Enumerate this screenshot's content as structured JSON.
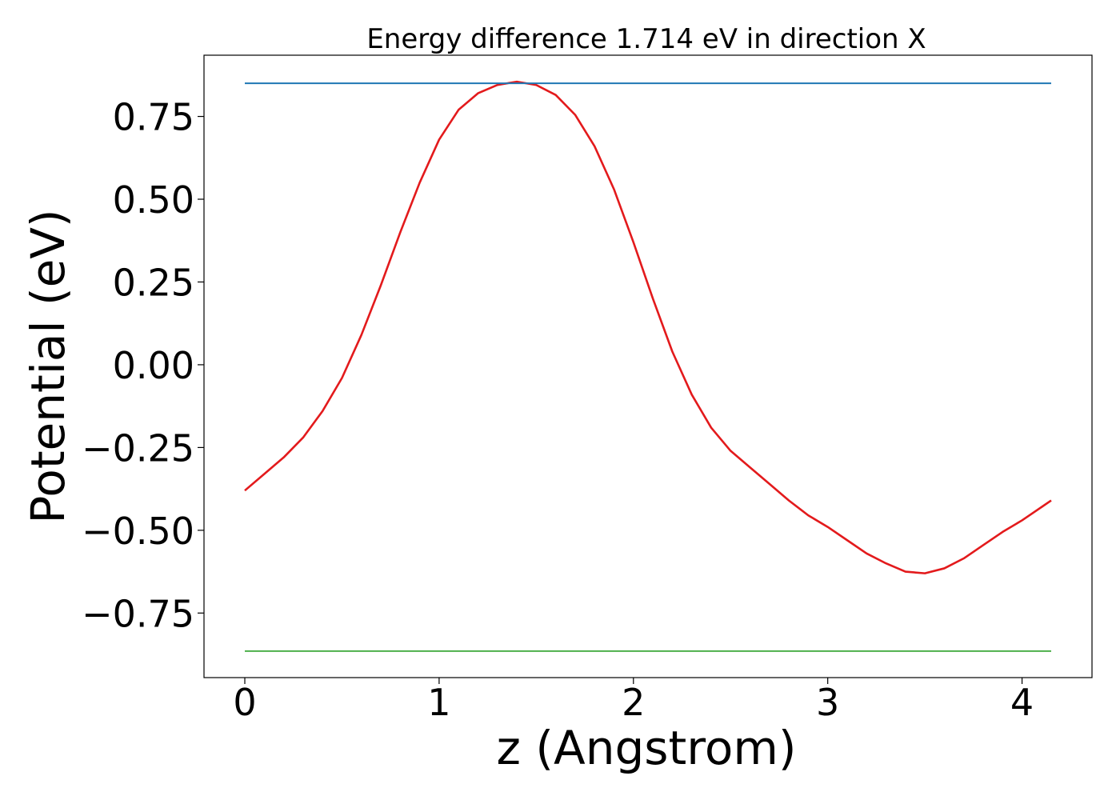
{
  "chart_data": {
    "type": "line",
    "title": "Energy difference 1.714 eV in direction X",
    "xlabel": "z (Angstrom)",
    "ylabel": "Potential (eV)",
    "xlim": [
      -0.21,
      4.36
    ],
    "ylim": [
      -0.945,
      0.935
    ],
    "x_ticks": [
      0,
      1,
      2,
      3,
      4
    ],
    "x_tick_labels": [
      "0",
      "1",
      "2",
      "3",
      "4"
    ],
    "y_ticks": [
      0.75,
      0.5,
      0.25,
      0.0,
      -0.25,
      -0.5,
      -0.75
    ],
    "y_tick_labels": [
      "0.75",
      "0.50",
      "0.25",
      "0.00",
      "−0.25",
      "−0.50",
      "−0.75"
    ],
    "grid": false,
    "series": [
      {
        "color": "#e31a1c",
        "x": [
          0.0,
          0.1,
          0.2,
          0.3,
          0.4,
          0.5,
          0.6,
          0.7,
          0.8,
          0.9,
          1.0,
          1.1,
          1.2,
          1.3,
          1.4,
          1.5,
          1.6,
          1.7,
          1.8,
          1.9,
          2.0,
          2.1,
          2.2,
          2.3,
          2.4,
          2.5,
          2.6,
          2.7,
          2.8,
          2.9,
          3.0,
          3.1,
          3.2,
          3.3,
          3.4,
          3.5,
          3.6,
          3.7,
          3.8,
          3.9,
          4.0,
          4.1,
          4.15
        ],
        "y": [
          -0.38,
          -0.33,
          -0.28,
          -0.22,
          -0.14,
          -0.04,
          0.09,
          0.24,
          0.4,
          0.55,
          0.68,
          0.77,
          0.82,
          0.845,
          0.855,
          0.845,
          0.815,
          0.755,
          0.66,
          0.53,
          0.37,
          0.2,
          0.04,
          -0.09,
          -0.19,
          -0.26,
          -0.31,
          -0.36,
          -0.41,
          -0.455,
          -0.49,
          -0.53,
          -0.57,
          -0.6,
          -0.625,
          -0.63,
          -0.615,
          -0.585,
          -0.545,
          -0.505,
          -0.47,
          -0.43,
          -0.41
        ]
      },
      {
        "color": "#1f77b4",
        "x": [
          0.0,
          4.15
        ],
        "y": [
          0.85,
          0.85
        ]
      },
      {
        "color": "#4daf4a",
        "x": [
          0.0,
          4.15
        ],
        "y": [
          -0.865,
          -0.865
        ]
      }
    ]
  }
}
